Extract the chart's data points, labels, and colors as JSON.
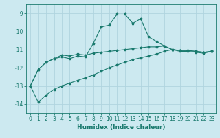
{
  "xlabel": "Humidex (Indice chaleur)",
  "bg_color": "#cce9f0",
  "grid_color": "#b0d4df",
  "line_color": "#1a7a6e",
  "spine_color": "#1a7a6e",
  "xlim": [
    -0.5,
    23.5
  ],
  "ylim": [
    -14.5,
    -8.5
  ],
  "yticks": [
    -14,
    -13,
    -12,
    -11,
    -10,
    -9
  ],
  "xticks": [
    0,
    1,
    2,
    3,
    4,
    5,
    6,
    7,
    8,
    9,
    10,
    11,
    12,
    13,
    14,
    15,
    16,
    17,
    18,
    19,
    20,
    21,
    22,
    23
  ],
  "line1_x": [
    0,
    1,
    2,
    3,
    4,
    5,
    6,
    7,
    8,
    9,
    10,
    11,
    12,
    13,
    14,
    15,
    16,
    17,
    18,
    19,
    20,
    21,
    22,
    23
  ],
  "line1_y": [
    -13.0,
    -12.1,
    -11.7,
    -11.5,
    -11.3,
    -11.35,
    -11.25,
    -11.3,
    -11.2,
    -11.15,
    -11.1,
    -11.05,
    -11.0,
    -10.95,
    -10.9,
    -10.85,
    -10.85,
    -10.8,
    -11.0,
    -11.05,
    -11.05,
    -11.1,
    -11.15,
    -11.1
  ],
  "line2_x": [
    0,
    1,
    2,
    3,
    4,
    5,
    6,
    7,
    8,
    9,
    10,
    11,
    12,
    13,
    14,
    15,
    16,
    17,
    18,
    19,
    20,
    21,
    22,
    23
  ],
  "line2_y": [
    -13.0,
    -12.1,
    -11.7,
    -11.5,
    -11.4,
    -11.5,
    -11.35,
    -11.4,
    -10.65,
    -9.75,
    -9.65,
    -9.05,
    -9.05,
    -9.55,
    -9.3,
    -10.3,
    -10.55,
    -10.8,
    -11.0,
    -11.1,
    -11.1,
    -11.15,
    -11.2,
    -11.1
  ],
  "line3_x": [
    0,
    1,
    2,
    3,
    4,
    5,
    6,
    7,
    8,
    9,
    10,
    11,
    12,
    13,
    14,
    15,
    16,
    17,
    18,
    19,
    20,
    21,
    22,
    23
  ],
  "line3_y": [
    -13.0,
    -13.9,
    -13.5,
    -13.2,
    -13.0,
    -12.85,
    -12.7,
    -12.55,
    -12.4,
    -12.2,
    -12.0,
    -11.85,
    -11.7,
    -11.55,
    -11.45,
    -11.35,
    -11.25,
    -11.1,
    -11.0,
    -11.05,
    -11.05,
    -11.1,
    -11.15,
    -11.1
  ],
  "xlabel_fontsize": 6.5,
  "tick_fontsize": 5.5,
  "linewidth": 0.8,
  "markersize": 2.5
}
